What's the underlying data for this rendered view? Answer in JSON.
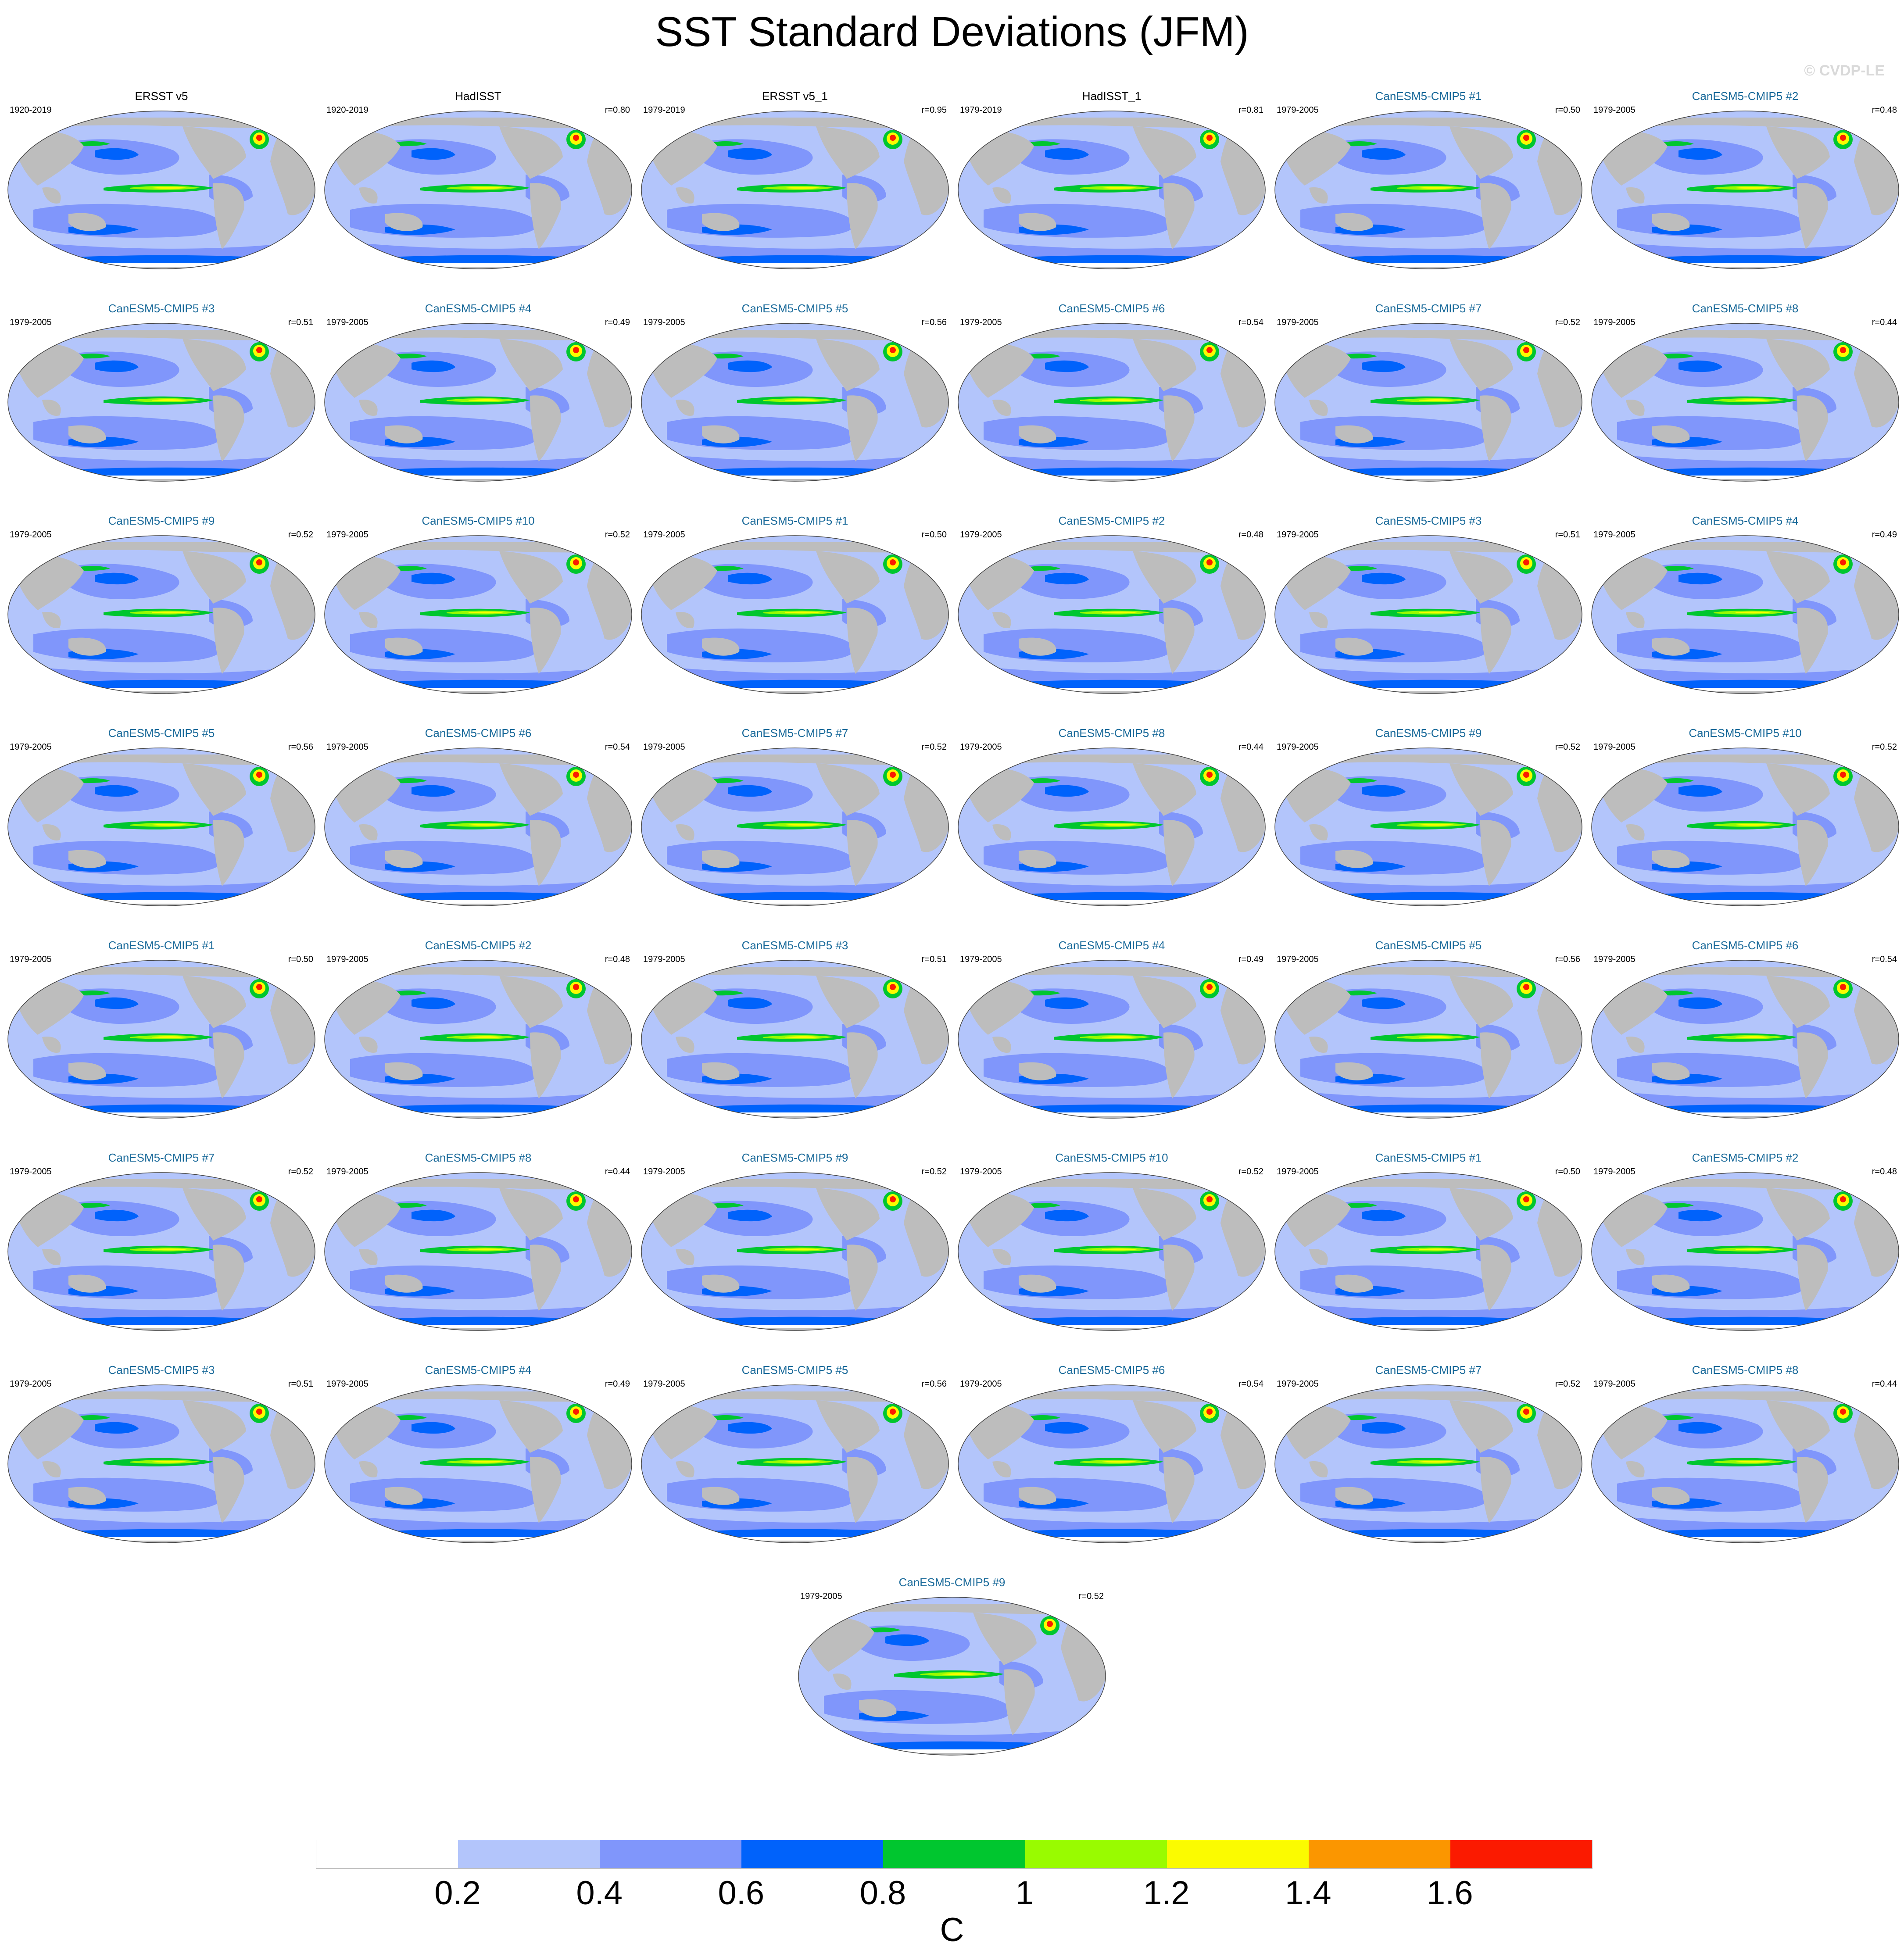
{
  "title": "SST Standard Deviations (JFM)",
  "watermark": "© CVDP-LE",
  "panels": [
    {
      "title": "ERSST v5",
      "period": "1920-2019",
      "r": "",
      "kind": "obs"
    },
    {
      "title": "HadISST",
      "period": "1920-2019",
      "r": "r=0.80",
      "kind": "obs"
    },
    {
      "title": "ERSST v5_1",
      "period": "1979-2019",
      "r": "r=0.95",
      "kind": "obs"
    },
    {
      "title": "HadISST_1",
      "period": "1979-2019",
      "r": "r=0.81",
      "kind": "obs"
    },
    {
      "title": "CanESM5-CMIP5 #1",
      "period": "1979-2005",
      "r": "r=0.50",
      "kind": "model"
    },
    {
      "title": "CanESM5-CMIP5 #2",
      "period": "1979-2005",
      "r": "r=0.48",
      "kind": "model"
    },
    {
      "title": "CanESM5-CMIP5 #3",
      "period": "1979-2005",
      "r": "r=0.51",
      "kind": "model"
    },
    {
      "title": "CanESM5-CMIP5 #4",
      "period": "1979-2005",
      "r": "r=0.49",
      "kind": "model"
    },
    {
      "title": "CanESM5-CMIP5 #5",
      "period": "1979-2005",
      "r": "r=0.56",
      "kind": "model"
    },
    {
      "title": "CanESM5-CMIP5 #6",
      "period": "1979-2005",
      "r": "r=0.54",
      "kind": "model"
    },
    {
      "title": "CanESM5-CMIP5 #7",
      "period": "1979-2005",
      "r": "r=0.52",
      "kind": "model"
    },
    {
      "title": "CanESM5-CMIP5 #8",
      "period": "1979-2005",
      "r": "r=0.44",
      "kind": "model"
    },
    {
      "title": "CanESM5-CMIP5 #9",
      "period": "1979-2005",
      "r": "r=0.52",
      "kind": "model"
    },
    {
      "title": "CanESM5-CMIP5 #10",
      "period": "1979-2005",
      "r": "r=0.52",
      "kind": "model"
    },
    {
      "title": "CanESM5-CMIP5 #1",
      "period": "1979-2005",
      "r": "r=0.50",
      "kind": "model"
    },
    {
      "title": "CanESM5-CMIP5 #2",
      "period": "1979-2005",
      "r": "r=0.48",
      "kind": "model"
    },
    {
      "title": "CanESM5-CMIP5 #3",
      "period": "1979-2005",
      "r": "r=0.51",
      "kind": "model"
    },
    {
      "title": "CanESM5-CMIP5 #4",
      "period": "1979-2005",
      "r": "r=0.49",
      "kind": "model"
    },
    {
      "title": "CanESM5-CMIP5 #5",
      "period": "1979-2005",
      "r": "r=0.56",
      "kind": "model"
    },
    {
      "title": "CanESM5-CMIP5 #6",
      "period": "1979-2005",
      "r": "r=0.54",
      "kind": "model"
    },
    {
      "title": "CanESM5-CMIP5 #7",
      "period": "1979-2005",
      "r": "r=0.52",
      "kind": "model"
    },
    {
      "title": "CanESM5-CMIP5 #8",
      "period": "1979-2005",
      "r": "r=0.44",
      "kind": "model"
    },
    {
      "title": "CanESM5-CMIP5 #9",
      "period": "1979-2005",
      "r": "r=0.52",
      "kind": "model"
    },
    {
      "title": "CanESM5-CMIP5 #10",
      "period": "1979-2005",
      "r": "r=0.52",
      "kind": "model"
    },
    {
      "title": "CanESM5-CMIP5 #1",
      "period": "1979-2005",
      "r": "r=0.50",
      "kind": "model"
    },
    {
      "title": "CanESM5-CMIP5 #2",
      "period": "1979-2005",
      "r": "r=0.48",
      "kind": "model"
    },
    {
      "title": "CanESM5-CMIP5 #3",
      "period": "1979-2005",
      "r": "r=0.51",
      "kind": "model"
    },
    {
      "title": "CanESM5-CMIP5 #4",
      "period": "1979-2005",
      "r": "r=0.49",
      "kind": "model"
    },
    {
      "title": "CanESM5-CMIP5 #5",
      "period": "1979-2005",
      "r": "r=0.56",
      "kind": "model"
    },
    {
      "title": "CanESM5-CMIP5 #6",
      "period": "1979-2005",
      "r": "r=0.54",
      "kind": "model"
    },
    {
      "title": "CanESM5-CMIP5 #7",
      "period": "1979-2005",
      "r": "r=0.52",
      "kind": "model"
    },
    {
      "title": "CanESM5-CMIP5 #8",
      "period": "1979-2005",
      "r": "r=0.44",
      "kind": "model"
    },
    {
      "title": "CanESM5-CMIP5 #9",
      "period": "1979-2005",
      "r": "r=0.52",
      "kind": "model"
    },
    {
      "title": "CanESM5-CMIP5 #10",
      "period": "1979-2005",
      "r": "r=0.52",
      "kind": "model"
    },
    {
      "title": "CanESM5-CMIP5 #1",
      "period": "1979-2005",
      "r": "r=0.50",
      "kind": "model"
    },
    {
      "title": "CanESM5-CMIP5 #2",
      "period": "1979-2005",
      "r": "r=0.48",
      "kind": "model"
    },
    {
      "title": "CanESM5-CMIP5 #3",
      "period": "1979-2005",
      "r": "r=0.51",
      "kind": "model"
    },
    {
      "title": "CanESM5-CMIP5 #4",
      "period": "1979-2005",
      "r": "r=0.49",
      "kind": "model"
    },
    {
      "title": "CanESM5-CMIP5 #5",
      "period": "1979-2005",
      "r": "r=0.56",
      "kind": "model"
    },
    {
      "title": "CanESM5-CMIP5 #6",
      "period": "1979-2005",
      "r": "r=0.54",
      "kind": "model"
    },
    {
      "title": "CanESM5-CMIP5 #7",
      "period": "1979-2005",
      "r": "r=0.52",
      "kind": "model"
    },
    {
      "title": "CanESM5-CMIP5 #8",
      "period": "1979-2005",
      "r": "r=0.44",
      "kind": "model"
    },
    {
      "title": "CanESM5-CMIP5 #9",
      "period": "1979-2005",
      "r": "r=0.52",
      "kind": "model"
    }
  ],
  "colorbar": {
    "colors": [
      "#ffffff",
      "#b3c5fb",
      "#8096fb",
      "#0062fb",
      "#00c62f",
      "#99fb00",
      "#fbfb00",
      "#fb9600",
      "#fb1a00"
    ],
    "ticks": [
      "0.2",
      "0.4",
      "0.6",
      "0.8",
      "1",
      "1.2",
      "1.4",
      "1.6"
    ],
    "units": "C"
  },
  "map_colors": {
    "land": "#bdbdbd",
    "ocean_low": "#b3c5fb"
  }
}
